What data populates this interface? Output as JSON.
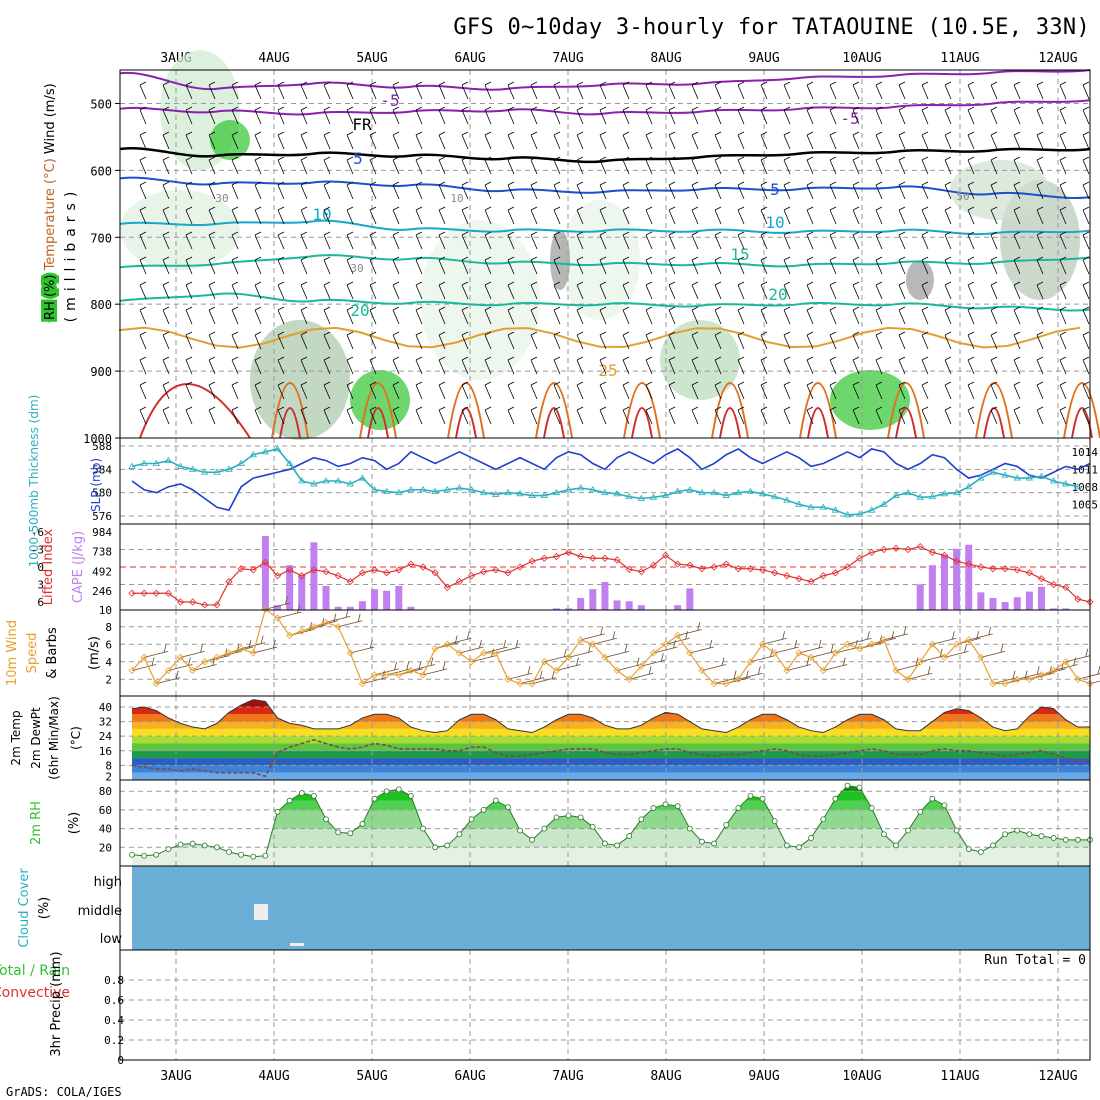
{
  "title": "GFS 0~10day 3-hourly for TATAOUINE (10.5E, 33N)",
  "footer": "GrADS: COLA/IGES",
  "colors": {
    "rh_green": "#2fc42f",
    "temp_purple": "#8a1fb0",
    "temp_blue": "#1e4fd0",
    "temp_cyan": "#1aa6c8",
    "temp_teal": "#1ab89a",
    "temp_orange": "#e0a030",
    "slp_blue": "#1f3fd0",
    "thickness_cyan": "#2ab0c0",
    "li_red": "#e03030",
    "cape_purple": "#c080f0",
    "wind_orange": "#e8a030",
    "cloud_blue": "#6baed6"
  },
  "chart_data": [
    {
      "id": "upper-air",
      "type": "heatmap",
      "ylabel_parts": [
        "RH (%)",
        "Temperature (°C)",
        "Wind (m/s)"
      ],
      "ylabel2": "(millibars)",
      "ylim": [
        1000,
        450
      ],
      "y_ticks": [
        500,
        600,
        700,
        800,
        900,
        1000
      ],
      "x_ticks": [
        "3AUG",
        "4AUG",
        "5AUG",
        "6AUG",
        "7AUG",
        "8AUG",
        "9AUG",
        "10AUG",
        "11AUG",
        "12AUG"
      ],
      "contour_labels": [
        "-5",
        "FR",
        "5",
        "10",
        "15",
        "20",
        "-5",
        "5",
        "10",
        "20",
        "25",
        "30",
        "10",
        "30",
        "50"
      ],
      "isotherms": [
        {
          "name": "-5",
          "pressure": [
            455,
            478,
            470,
            475,
            478,
            472,
            470,
            462,
            458,
            454,
            450
          ]
        },
        {
          "name": "-5",
          "pressure": [
            508,
            512,
            515,
            512,
            510,
            515,
            512,
            508,
            505,
            500,
            495
          ]
        },
        {
          "name": "FR",
          "pressure": [
            568,
            578,
            575,
            578,
            582,
            586,
            580,
            575,
            572,
            570,
            568
          ]
        },
        {
          "name": "5",
          "pressure": [
            612,
            620,
            618,
            622,
            630,
            632,
            628,
            628,
            625,
            635,
            640
          ]
        },
        {
          "name": "10",
          "pressure": [
            680,
            680,
            676,
            688,
            690,
            690,
            690,
            692,
            690,
            694,
            690
          ]
        },
        {
          "name": "15",
          "pressure": [
            745,
            740,
            728,
            732,
            738,
            740,
            740,
            742,
            738,
            738,
            730
          ]
        },
        {
          "name": "20",
          "pressure": [
            795,
            785,
            795,
            798,
            800,
            800,
            802,
            800,
            800,
            805,
            808
          ]
        }
      ]
    },
    {
      "id": "slp-thickness",
      "type": "line",
      "ylabel_left": "1000-500mb Thickness (dm)",
      "ylabel_right": "SLP (mb)",
      "left_ticks": [
        "588",
        "584",
        "580",
        "576"
      ],
      "right_ticks": [
        "1014",
        "1011",
        "1008",
        "1005"
      ],
      "series": [
        {
          "name": "SLP (mb)",
          "axis": "right",
          "values": [
            1009,
            1007.5,
            1007,
            1008,
            1008.5,
            1007.5,
            1006,
            1004.5,
            1004,
            1008,
            1009.5,
            1010,
            1010.5,
            1011,
            1012,
            1013,
            1012.5,
            1011.5,
            1012,
            1013,
            1012.5,
            1011,
            1012,
            1014,
            1013,
            1012,
            1013,
            1014,
            1013,
            1012,
            1011,
            1012,
            1013,
            1012,
            1011,
            1013,
            1014,
            1013.5,
            1012,
            1011,
            1013,
            1014,
            1013,
            1012,
            1013.5,
            1014.5,
            1013,
            1011,
            1012,
            1013.5,
            1014.5,
            1013,
            1012,
            1013,
            1014,
            1013,
            1011.5,
            1012,
            1013,
            1014,
            1013,
            1014.5,
            1014,
            1012,
            1011,
            1012,
            1013.5,
            1013,
            1011,
            1009.5,
            1010,
            1011,
            1012,
            1011.5,
            1010,
            1009.5,
            1010.5,
            1011.5,
            1011,
            1012
          ]
        },
        {
          "name": "Thickness (dm)",
          "axis": "left",
          "values": [
            584.5,
            585,
            585,
            585.5,
            584.5,
            584,
            583.5,
            583.5,
            584,
            585,
            586.5,
            587,
            587.5,
            585,
            582,
            581.5,
            582,
            582,
            581.5,
            582.5,
            580.5,
            580.2,
            580,
            580.5,
            580.5,
            580.2,
            580.5,
            580.8,
            580.5,
            580,
            579.7,
            580,
            579.8,
            579.5,
            579.5,
            580,
            580.5,
            580.8,
            580.5,
            580,
            579.8,
            579.3,
            579,
            579.2,
            579.5,
            580.2,
            580.5,
            580,
            580,
            579.5,
            580,
            580.2,
            579.8,
            579.3,
            578.7,
            578,
            577.5,
            577.5,
            577,
            576.2,
            576.3,
            577,
            578,
            579.5,
            580,
            579.2,
            579.3,
            579.8,
            580,
            581,
            582.5,
            583.5,
            583,
            582.5,
            582.5,
            582.8,
            582,
            581.5,
            581
          ]
        }
      ]
    },
    {
      "id": "li-cape",
      "type": "bar",
      "ylabel_left": "Lifted Index",
      "ylabel_right": "CAPE (J/kg)",
      "left_ticks": [
        "-6",
        "-3",
        "0",
        "3",
        "6"
      ],
      "right_ticks": [
        "984",
        "738",
        "492",
        "246",
        "10"
      ],
      "cape_values": [
        0,
        0,
        0,
        0,
        0,
        0,
        0,
        0,
        0,
        0,
        0,
        925,
        60,
        560,
        440,
        845,
        300,
        40,
        40,
        110,
        260,
        240,
        300,
        40,
        0,
        0,
        0,
        0,
        0,
        0,
        0,
        0,
        0,
        0,
        0,
        20,
        20,
        150,
        260,
        350,
        120,
        110,
        60,
        0,
        0,
        60,
        270,
        0,
        0,
        0,
        0,
        0,
        0,
        0,
        0,
        0,
        0,
        0,
        0,
        0,
        0,
        0,
        0,
        0,
        0,
        320,
        560,
        690,
        765,
        815,
        220,
        150,
        100,
        160,
        230,
        290,
        20,
        20,
        0,
        0
      ],
      "li_values": [
        4.5,
        4.5,
        4.5,
        4.5,
        6,
        6,
        6.5,
        6.5,
        2.5,
        0.3,
        0.5,
        -0.8,
        1.5,
        0.5,
        1.5,
        0.5,
        0.8,
        1.5,
        2.5,
        1,
        0.5,
        1,
        0.5,
        -0.5,
        0,
        1,
        3.5,
        2.5,
        1.5,
        0.8,
        0.5,
        1,
        0,
        -1,
        -1.5,
        -1.8,
        -2.5,
        -1.8,
        -1.5,
        -1.5,
        -1.2,
        0.4,
        0.8,
        -0.3,
        -2,
        -0.5,
        -0.3,
        0.3,
        0,
        -0.5,
        0.3,
        0.3,
        0.5,
        1,
        1.5,
        2,
        2.5,
        1.5,
        1,
        0,
        -1.5,
        -2.5,
        -3,
        -3.2,
        -3,
        -3.5,
        -2.5,
        -2,
        -1,
        -0.5,
        0,
        0.3,
        0.3,
        0.5,
        1,
        2,
        3,
        3.5,
        5.5,
        6
      ],
      "zero_line": 0
    },
    {
      "id": "wind10m",
      "type": "line",
      "ylabel": "10m Wind Speed & Barbs (m/s)",
      "ylabel_parts": [
        "10m Wind",
        "Speed",
        "& Barbs",
        "(m/s)"
      ],
      "left_ticks": [
        "8",
        "6",
        "4",
        "2"
      ],
      "series": [
        {
          "name": "Speed",
          "values": [
            3,
            4.5,
            1.5,
            3,
            4.5,
            3,
            4,
            4.5,
            5,
            5.5,
            5,
            10,
            9,
            7,
            7.5,
            8,
            8.5,
            8,
            5,
            1.5,
            2.5,
            2.5,
            2.5,
            3,
            2.5,
            5.5,
            6,
            5,
            4,
            5,
            5,
            2,
            1.5,
            1.5,
            4,
            3,
            4.5,
            6.5,
            6,
            4.5,
            3,
            2,
            3.5,
            5,
            6,
            7,
            5,
            3,
            1.5,
            1.5,
            2,
            4,
            6,
            5,
            3,
            5,
            4.5,
            3,
            5,
            6,
            5.5,
            6,
            6.5,
            3,
            2,
            4,
            6,
            4.5,
            6,
            6.5,
            4.5,
            1.5,
            1.5,
            2,
            2,
            2.5,
            3,
            4,
            2,
            1.5
          ]
        }
      ]
    },
    {
      "id": "temp2m",
      "type": "area",
      "ylabel_parts": [
        "2m Temp",
        "2m DewPt",
        "(6hr Min/Max)",
        "(°C)"
      ],
      "left_ticks": [
        "40",
        "32",
        "24",
        "16",
        "8",
        "2"
      ],
      "temp": [
        39,
        40,
        38,
        34,
        31,
        29,
        28,
        31,
        37,
        41,
        44,
        43,
        34,
        31,
        30,
        28,
        28,
        28,
        30,
        34,
        36,
        36,
        34,
        29,
        27,
        26,
        27,
        33,
        36,
        36,
        33,
        28,
        27,
        26,
        29,
        33,
        36,
        36,
        34,
        30,
        28,
        28,
        30,
        34,
        37,
        36,
        32,
        28,
        27,
        26,
        29,
        33,
        36,
        36,
        33,
        29,
        27,
        26,
        29,
        33,
        36,
        36,
        33,
        28,
        27,
        27,
        32,
        37,
        39,
        38,
        34,
        29,
        27,
        28,
        35,
        40,
        39,
        33,
        29,
        29
      ],
      "dewpt": [
        8,
        7,
        6,
        6,
        5,
        6,
        5,
        4,
        4,
        4,
        4,
        2,
        15,
        18,
        20,
        22,
        20,
        18,
        17,
        18,
        20,
        19,
        17,
        17,
        17,
        17,
        16,
        16,
        18,
        18,
        15,
        13,
        13,
        14,
        15,
        16,
        17,
        17,
        17,
        15,
        14,
        14,
        15,
        16,
        17,
        17,
        15,
        14,
        13,
        14,
        14,
        15,
        16,
        17,
        16,
        14,
        13,
        13,
        14,
        15,
        16,
        17,
        16,
        14,
        14,
        14,
        16,
        17,
        16,
        16,
        15,
        14,
        13,
        14,
        15,
        16,
        14,
        12,
        11,
        10
      ]
    },
    {
      "id": "rh2m",
      "type": "area",
      "ylabel_parts": [
        "2m RH",
        "(%)"
      ],
      "left_ticks": [
        "80",
        "60",
        "40",
        "20"
      ],
      "values": [
        12,
        11,
        12,
        18,
        23,
        24,
        22,
        20,
        15,
        12,
        10,
        11,
        58,
        70,
        78,
        75,
        50,
        36,
        35,
        45,
        72,
        80,
        82,
        75,
        40,
        20,
        22,
        34,
        50,
        60,
        70,
        63,
        38,
        28,
        40,
        52,
        54,
        52,
        42,
        24,
        22,
        32,
        50,
        62,
        66,
        64,
        40,
        26,
        24,
        44,
        62,
        75,
        72,
        48,
        22,
        20,
        30,
        50,
        72,
        86,
        84,
        62,
        34,
        22,
        38,
        58,
        72,
        65,
        38,
        18,
        15,
        22,
        34,
        38,
        34,
        32,
        30,
        28,
        28,
        28
      ]
    },
    {
      "id": "cloud",
      "type": "heatmap",
      "ylabel_parts": [
        "Cloud Cover",
        "(%)"
      ],
      "levels": [
        "high",
        "middle",
        "low"
      ]
    },
    {
      "id": "precip",
      "type": "bar",
      "ylabel_parts": [
        "Total / Rain",
        "Convective",
        "3hr Precip (mm)"
      ],
      "left_ticks": [
        "0.8",
        "0.6",
        "0.4",
        "0.2",
        "0"
      ],
      "ylim": [
        0,
        1
      ],
      "run_total": "Run Total = 0",
      "values": []
    }
  ]
}
